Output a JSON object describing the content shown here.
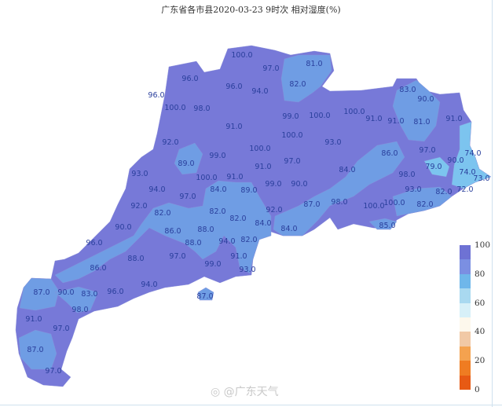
{
  "title": "广东省各市县2020-03-23 9时次 相对湿度(%)",
  "watermark": "@广东天气",
  "colors": {
    "fill_90_100": "#7779d8",
    "fill_80_90": "#6f9de4",
    "fill_70_80": "#7cc4ef",
    "text": "#2a3f9c"
  },
  "legend": {
    "ticks": [
      "100",
      "80",
      "60",
      "40",
      "20",
      "0"
    ],
    "bands": [
      "#6e72d4",
      "#7b8fe2",
      "#6fb7ea",
      "#a9d9f0",
      "#d7f0f8",
      "#fdf8ec",
      "#f1c9a6",
      "#f4a24f",
      "#ef7c22",
      "#e75a14"
    ]
  },
  "station_values": [
    "100.0",
    "97.0",
    "81.0",
    "82.0",
    "96.0",
    "96.0",
    "94.0",
    "96.0",
    "100.0",
    "98.0",
    "99.0",
    "100.0",
    "91.0",
    "100.0",
    "92.0",
    "93.0",
    "100.0",
    "99.0",
    "97.0",
    "89.0",
    "91.0",
    "93.0",
    "100.0",
    "91.0",
    "84.0",
    "89.0",
    "99.0",
    "90.0",
    "94.0",
    "97.0",
    "87.0",
    "98.0",
    "92.0",
    "82.0",
    "82.0",
    "82.0",
    "92.0",
    "84.0",
    "84.0",
    "90.0",
    "86.0",
    "88.0",
    "88.0",
    "94.0",
    "82.0",
    "88.0",
    "97.0",
    "99.0",
    "91.0",
    "93.0",
    "96.0",
    "86.0",
    "94.0",
    "87.0",
    "90.0",
    "83.0",
    "96.0",
    "98.0",
    "91.0",
    "97.0",
    "87.0",
    "97.0",
    "87.0",
    "83.0",
    "90.0",
    "100.0",
    "91.0",
    "91.0",
    "81.0",
    "91.0",
    "86.0",
    "97.0",
    "74.0",
    "84.0",
    "79.0",
    "90.0",
    "74.0",
    "73.0",
    "98.0",
    "93.0",
    "82.0",
    "72.0",
    "100.0",
    "100.0",
    "82.0",
    "85.0"
  ]
}
